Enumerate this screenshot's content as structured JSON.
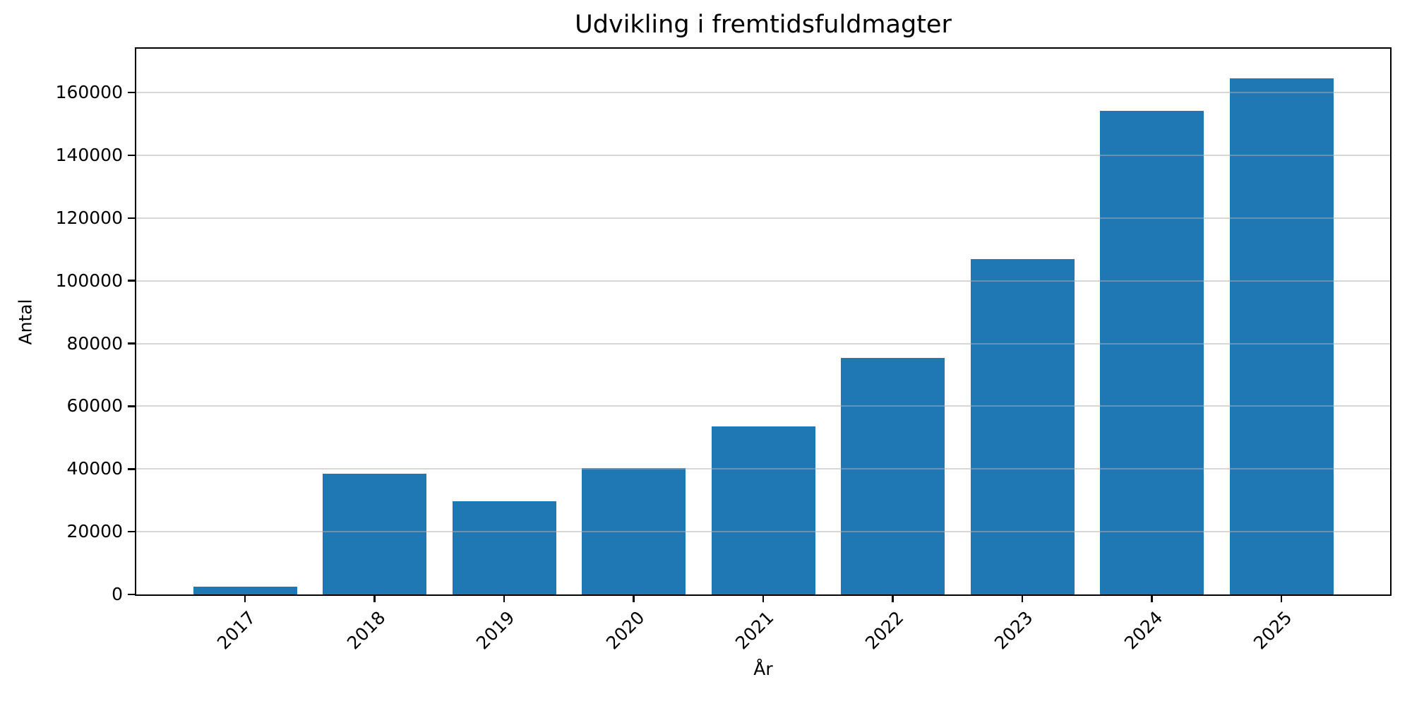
{
  "chart_data": {
    "type": "bar",
    "title": "Udvikling i fremtidsfuldmagter",
    "xlabel": "År",
    "ylabel": "Antal",
    "categories": [
      "2017",
      "2018",
      "2019",
      "2020",
      "2021",
      "2022",
      "2023",
      "2024",
      "2025"
    ],
    "values": [
      2500,
      38500,
      29800,
      40300,
      53600,
      75500,
      107000,
      154100,
      164500
    ],
    "yticks": [
      0,
      20000,
      40000,
      60000,
      80000,
      100000,
      120000,
      140000,
      160000
    ],
    "ylim": [
      0,
      174000
    ],
    "x_tick_rotation": 45,
    "bar_color": "#1f77b4",
    "grid": "horizontal",
    "grid_color": "#b0b0b0",
    "axis_color": "#000000",
    "background_color": "#ffffff",
    "legend": "none"
  }
}
